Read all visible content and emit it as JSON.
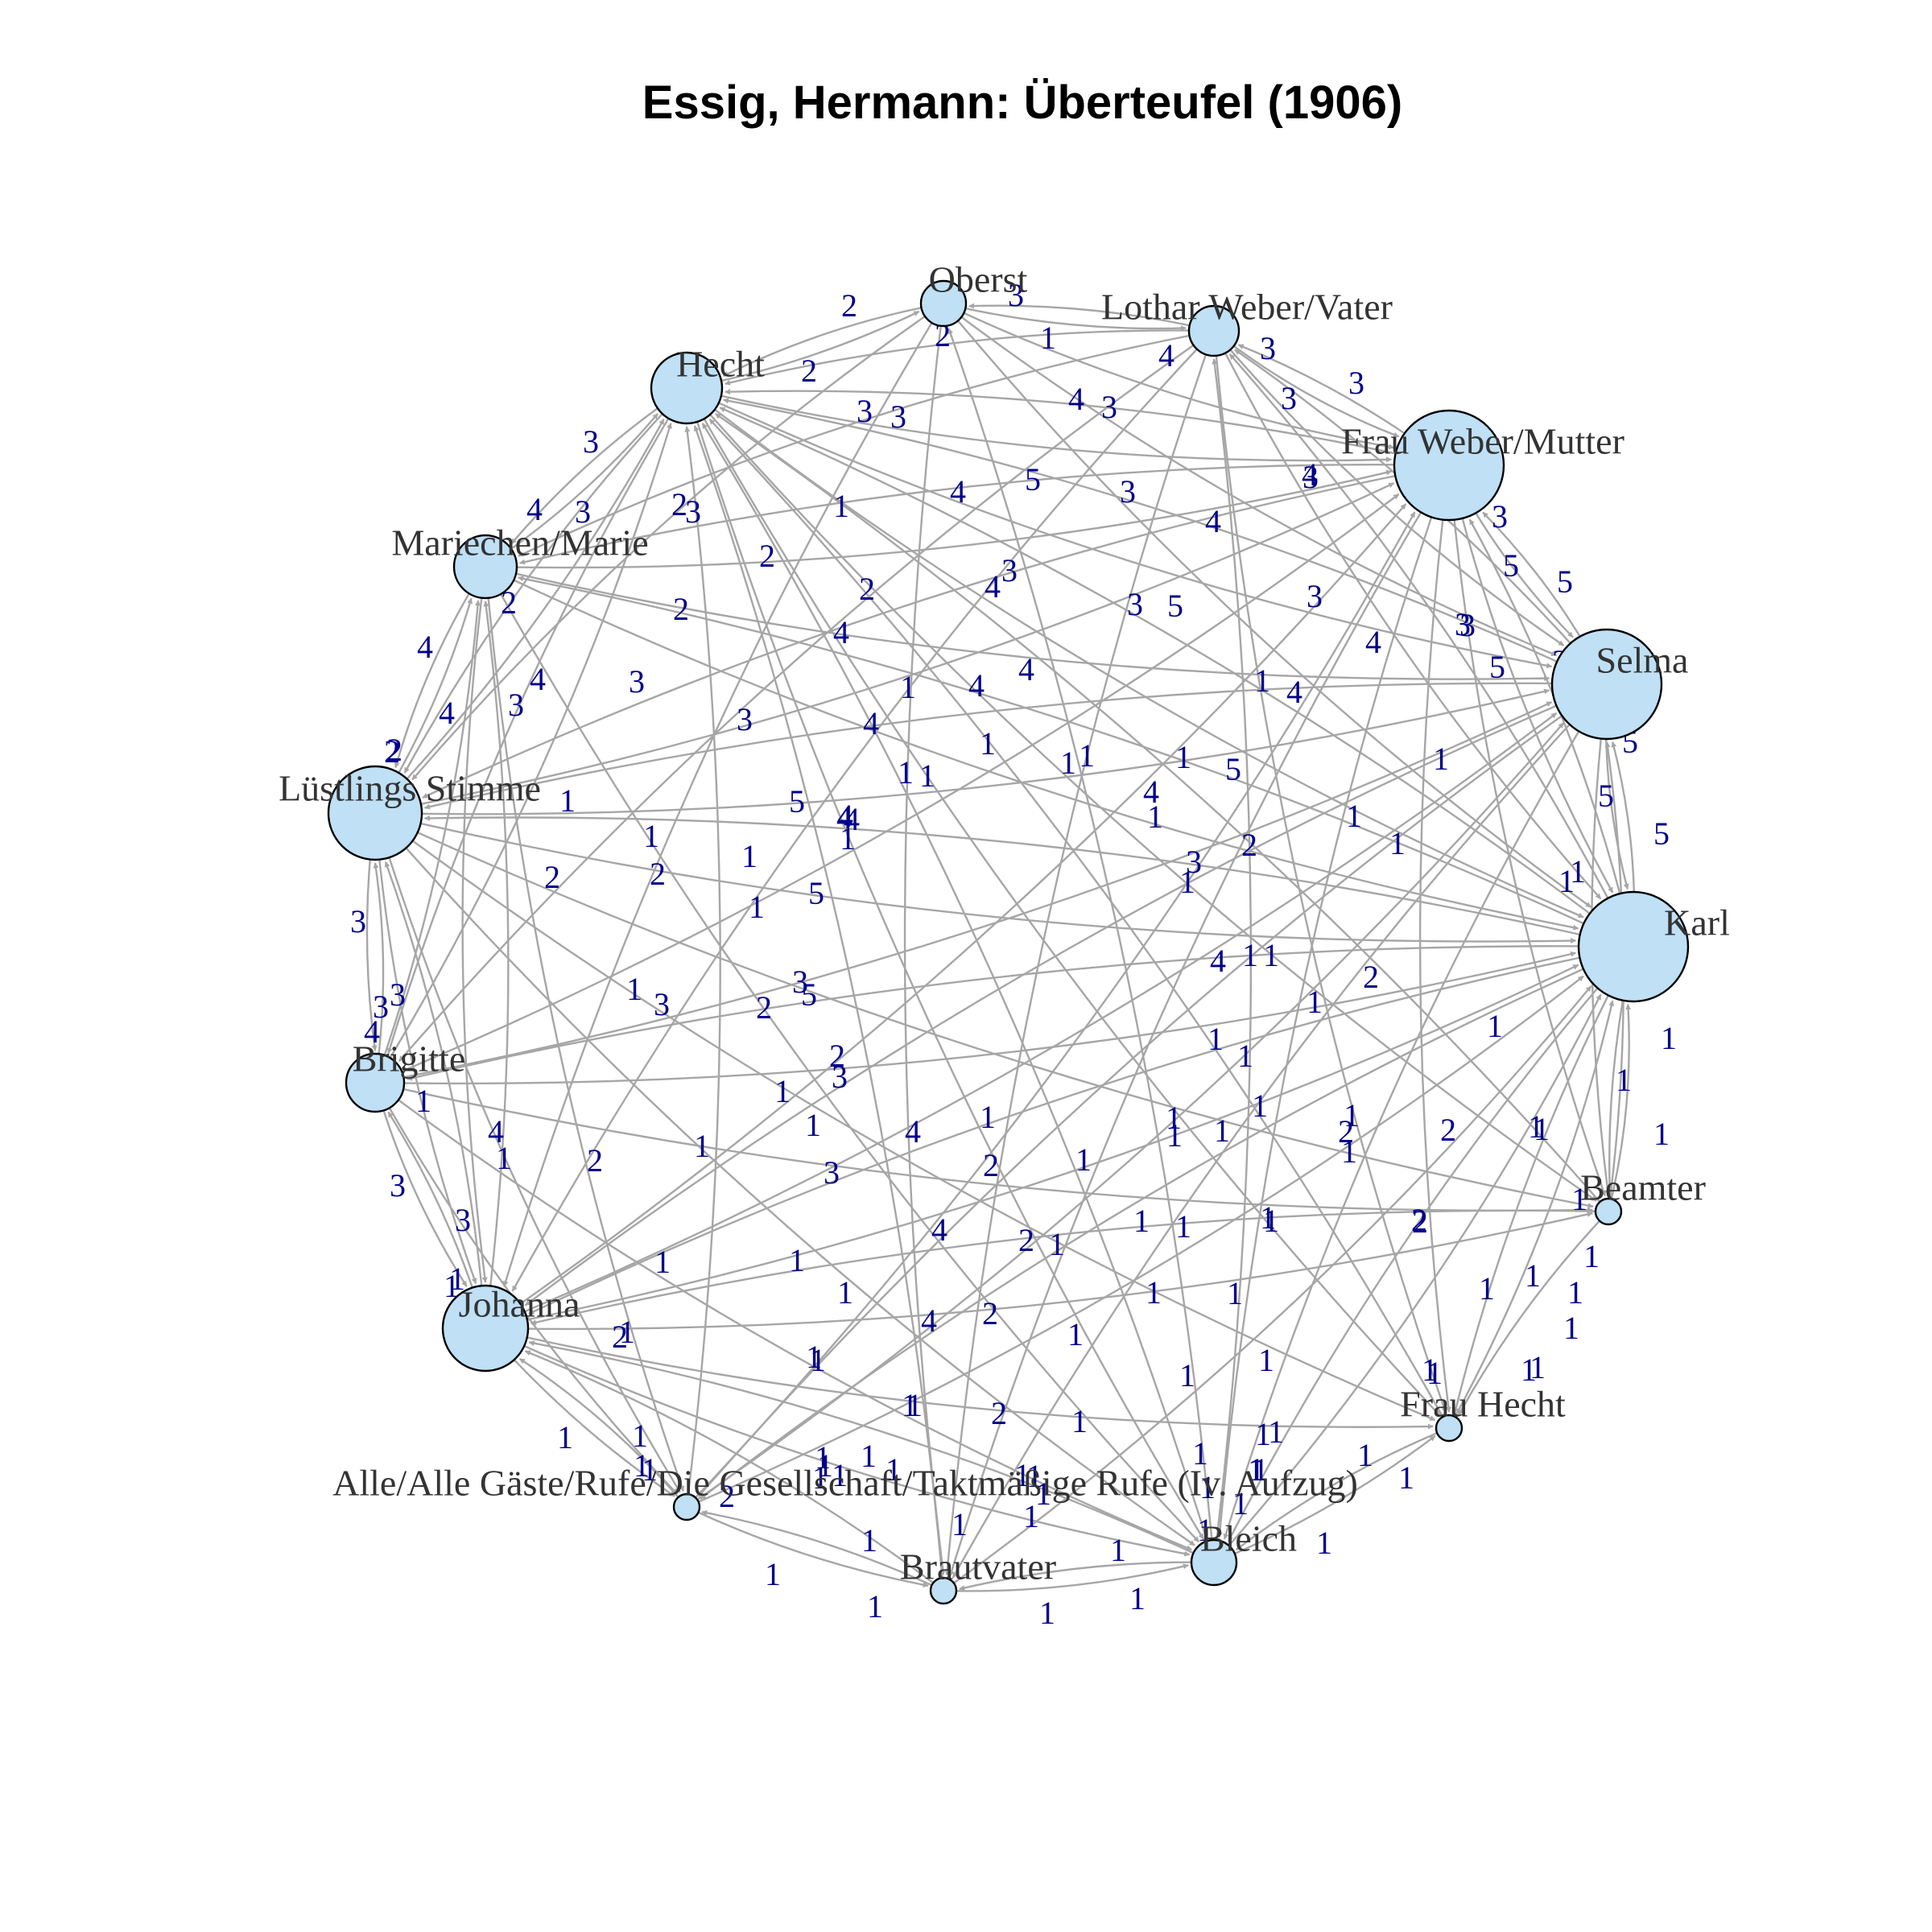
{
  "title": "Essig, Hermann: Überteufel (1906)",
  "colors": {
    "node_fill": "#bfe0f5",
    "edge": "#a6a6a6",
    "edge_label": "#00008b",
    "node_border": "#000000"
  },
  "nodes": [
    {
      "id": "oberst",
      "label": "Oberst",
      "size": 2
    },
    {
      "id": "lothar",
      "label": "Lothar Weber/Vater",
      "size": 2.3
    },
    {
      "id": "frauweber",
      "label": "Frau Weber/Mutter",
      "size": 6
    },
    {
      "id": "selma",
      "label": "Selma",
      "size": 6
    },
    {
      "id": "karl",
      "label": "Karl",
      "size": 6
    },
    {
      "id": "beamter",
      "label": "Beamter",
      "size": 0.8
    },
    {
      "id": "frauhecht",
      "label": "Frau Hecht",
      "size": 0.8
    },
    {
      "id": "bleich",
      "label": "Bleich",
      "size": 2
    },
    {
      "id": "brautvater",
      "label": "Brautvater",
      "size": 0.8
    },
    {
      "id": "alle",
      "label": "Alle/Alle Gäste/Rufe/Die Gesellschaft/Taktmäßige Rufe (Iv. Aufzug)",
      "size": 0.8
    },
    {
      "id": "johanna",
      "label": "Johanna",
      "size": 4.5
    },
    {
      "id": "brigitte",
      "label": "Brigitte",
      "size": 2.8
    },
    {
      "id": "luestling",
      "label": "Lüstlings Stimme",
      "size": 5
    },
    {
      "id": "mariechen",
      "label": "Mariechen/Marie",
      "size": 3.1
    },
    {
      "id": "hecht",
      "label": "Hecht",
      "size": 3.6
    }
  ],
  "edges": [
    [
      "oberst",
      "lothar",
      3
    ],
    [
      "oberst",
      "hecht",
      2
    ],
    [
      "hecht",
      "oberst",
      2
    ],
    [
      "lothar",
      "hecht",
      3
    ],
    [
      "lothar",
      "oberst",
      1
    ],
    [
      "lothar",
      "frauweber",
      3
    ],
    [
      "frauweber",
      "lothar",
      3
    ],
    [
      "frauweber",
      "selma",
      5
    ],
    [
      "selma",
      "frauweber",
      3
    ],
    [
      "selma",
      "karl",
      5
    ],
    [
      "karl",
      "selma",
      5
    ],
    [
      "karl",
      "beamter",
      1
    ],
    [
      "beamter",
      "karl",
      1
    ],
    [
      "beamter",
      "frauhecht",
      1
    ],
    [
      "frauhecht",
      "bleich",
      1
    ],
    [
      "bleich",
      "frauhecht",
      1
    ],
    [
      "bleich",
      "brautvater",
      1
    ],
    [
      "brautvater",
      "bleich",
      1
    ],
    [
      "brautvater",
      "alle",
      1
    ],
    [
      "alle",
      "brautvater",
      1
    ],
    [
      "alle",
      "johanna",
      1
    ],
    [
      "johanna",
      "alle",
      1
    ],
    [
      "johanna",
      "brigitte",
      3
    ],
    [
      "brigitte",
      "johanna",
      3
    ],
    [
      "brigitte",
      "luestling",
      3
    ],
    [
      "luestling",
      "brigitte",
      3
    ],
    [
      "luestling",
      "mariechen",
      4
    ],
    [
      "mariechen",
      "luestling",
      4
    ],
    [
      "mariechen",
      "hecht",
      3
    ],
    [
      "hecht",
      "mariechen",
      4
    ],
    [
      "hecht",
      "frauweber",
      3
    ],
    [
      "frauweber",
      "hecht",
      3
    ],
    [
      "hecht",
      "selma",
      4
    ],
    [
      "selma",
      "hecht",
      4
    ],
    [
      "hecht",
      "karl",
      3
    ],
    [
      "karl",
      "hecht",
      3
    ],
    [
      "lothar",
      "selma",
      3
    ],
    [
      "selma",
      "lothar",
      4
    ],
    [
      "lothar",
      "karl",
      4
    ],
    [
      "karl",
      "lothar",
      3
    ],
    [
      "frauweber",
      "karl",
      5
    ],
    [
      "karl",
      "frauweber",
      5
    ],
    [
      "mariechen",
      "frauweber",
      5
    ],
    [
      "frauweber",
      "mariechen",
      4
    ],
    [
      "mariechen",
      "karl",
      4
    ],
    [
      "karl",
      "mariechen",
      4
    ],
    [
      "luestling",
      "frauweber",
      3
    ],
    [
      "frauweber",
      "luestling",
      2
    ],
    [
      "luestling",
      "karl",
      5
    ],
    [
      "karl",
      "luestling",
      5
    ],
    [
      "luestling",
      "selma",
      4
    ],
    [
      "selma",
      "luestling",
      3
    ],
    [
      "brigitte",
      "karl",
      1
    ],
    [
      "karl",
      "brigitte",
      2
    ],
    [
      "brigitte",
      "selma",
      2
    ],
    [
      "johanna",
      "karl",
      1
    ],
    [
      "karl",
      "johanna",
      1
    ],
    [
      "johanna",
      "selma",
      2
    ],
    [
      "selma",
      "johanna",
      3
    ],
    [
      "johanna",
      "frauweber",
      2
    ],
    [
      "bleich",
      "hecht",
      1
    ],
    [
      "hecht",
      "bleich",
      1
    ],
    [
      "bleich",
      "karl",
      1
    ],
    [
      "karl",
      "bleich",
      1
    ],
    [
      "bleich",
      "johanna",
      1
    ],
    [
      "johanna",
      "bleich",
      1
    ],
    [
      "bleich",
      "oberst",
      1
    ],
    [
      "bleich",
      "lothar",
      1
    ],
    [
      "frauhecht",
      "hecht",
      1
    ],
    [
      "hecht",
      "frauhecht",
      1
    ],
    [
      "frauhecht",
      "karl",
      2
    ],
    [
      "karl",
      "frauhecht",
      1
    ],
    [
      "beamter",
      "hecht",
      1
    ],
    [
      "beamter",
      "johanna",
      1
    ],
    [
      "beamter",
      "selma",
      1
    ],
    [
      "brautvater",
      "hecht",
      1
    ],
    [
      "brautvater",
      "johanna",
      1
    ],
    [
      "brautvater",
      "karl",
      1
    ],
    [
      "alle",
      "hecht",
      2
    ],
    [
      "alle",
      "karl",
      1
    ],
    [
      "alle",
      "frauweber",
      1
    ],
    [
      "alle",
      "selma",
      1
    ],
    [
      "oberst",
      "johanna",
      1
    ],
    [
      "oberst",
      "karl",
      1
    ],
    [
      "oberst",
      "frauweber",
      4
    ],
    [
      "lothar",
      "johanna",
      2
    ],
    [
      "lothar",
      "mariechen",
      2
    ],
    [
      "mariechen",
      "johanna",
      3
    ],
    [
      "johanna",
      "mariechen",
      2
    ],
    [
      "brigitte",
      "hecht",
      2
    ],
    [
      "hecht",
      "brigitte",
      3
    ],
    [
      "brigitte",
      "mariechen",
      4
    ],
    [
      "luestling",
      "hecht",
      3
    ],
    [
      "hecht",
      "luestling",
      2
    ],
    [
      "luestling",
      "johanna",
      4
    ],
    [
      "johanna",
      "luestling",
      3
    ],
    [
      "selma",
      "beamter",
      2
    ],
    [
      "frauweber",
      "beamter",
      1
    ],
    [
      "frauweber",
      "bleich",
      1
    ],
    [
      "selma",
      "bleich",
      1
    ],
    [
      "brigitte",
      "bleich",
      1
    ],
    [
      "mariechen",
      "bleich",
      1
    ],
    [
      "luestling",
      "bleich",
      1
    ],
    [
      "luestling",
      "alle",
      1
    ],
    [
      "mariechen",
      "alle",
      1
    ],
    [
      "brigitte",
      "alle",
      1
    ],
    [
      "selma",
      "alle",
      1
    ],
    [
      "frauweber",
      "frauhecht",
      2
    ],
    [
      "lothar",
      "frauhecht",
      1
    ],
    [
      "oberst",
      "brautvater",
      1
    ],
    [
      "lothar",
      "brautvater",
      1
    ],
    [
      "selma",
      "brautvater",
      1
    ],
    [
      "frauweber",
      "brautvater",
      1
    ],
    [
      "karl",
      "alle",
      2
    ],
    [
      "brigitte",
      "frauweber",
      4
    ],
    [
      "lothar",
      "brigitte",
      1
    ],
    [
      "oberst",
      "selma",
      3
    ],
    [
      "oberst",
      "luestling",
      2
    ],
    [
      "mariechen",
      "selma",
      3
    ],
    [
      "luestling",
      "frauhecht",
      1
    ],
    [
      "johanna",
      "frauhecht",
      2
    ],
    [
      "hecht",
      "beamter",
      1
    ],
    [
      "luestling",
      "beamter",
      1
    ],
    [
      "johanna",
      "beamter",
      1
    ],
    [
      "brigitte",
      "beamter",
      4
    ]
  ],
  "edge_labels": [
    [
      "2",
      1055,
      384
    ],
    [
      "3",
      1262,
      371
    ],
    [
      "2",
      1171,
      421
    ],
    [
      "1",
      1302,
      424
    ],
    [
      "4",
      1449,
      446
    ],
    [
      "3",
      1575,
      437
    ],
    [
      "3",
      1685,
      480
    ],
    [
      "3",
      1601,
      499
    ],
    [
      "2",
      1005,
      465
    ],
    [
      "3",
      1074,
      515
    ],
    [
      "3",
      1116,
      522
    ],
    [
      "4",
      1337,
      500
    ],
    [
      "3",
      1378,
      510
    ],
    [
      "4",
      1627,
      594
    ],
    [
      "3",
      1628,
      597
    ],
    [
      "3",
      1863,
      646
    ],
    [
      "5",
      1877,
      707
    ],
    [
      "5",
      1944,
      727
    ],
    [
      "3",
      1823,
      781
    ],
    [
      "5",
      1860,
      833
    ],
    [
      "3",
      1938,
      826
    ],
    [
      "5",
      2025,
      926
    ],
    [
      "5",
      1995,
      993
    ],
    [
      "5",
      2064,
      1040
    ],
    [
      "3",
      734,
      553
    ],
    [
      "4",
      664,
      637
    ],
    [
      "3",
      724,
      640
    ],
    [
      "2",
      844,
      631
    ],
    [
      "3",
      861,
      640
    ],
    [
      "2",
      632,
      753
    ],
    [
      "4",
      528,
      808
    ],
    [
      "4",
      555,
      890
    ],
    [
      "2",
      490,
      936
    ],
    [
      "2",
      953,
      695
    ],
    [
      "1",
      1045,
      633
    ],
    [
      "4",
      1190,
      615
    ],
    [
      "5",
      1283,
      600
    ],
    [
      "3",
      1401,
      615
    ],
    [
      "4",
      1507,
      652
    ],
    [
      "3",
      1254,
      713
    ],
    [
      "4",
      1233,
      733
    ],
    [
      "2",
      1077,
      736
    ],
    [
      "3",
      1410,
      755
    ],
    [
      "5",
      1460,
      757
    ],
    [
      "3",
      1633,
      745
    ],
    [
      "4",
      1706,
      802
    ],
    [
      "3",
      1817,
      780
    ],
    [
      "4",
      1045,
      790
    ],
    [
      "2",
      846,
      761
    ],
    [
      "4",
      668,
      848
    ],
    [
      "3",
      641,
      880
    ],
    [
      "3",
      791,
      851
    ],
    [
      "3",
      925,
      898
    ],
    [
      "1",
      1128,
      858
    ],
    [
      "4",
      1213,
      856
    ],
    [
      "4",
      1275,
      836
    ],
    [
      "4",
      1082,
      903
    ],
    [
      "1",
      1227,
      928
    ],
    [
      "1",
      1568,
      850
    ],
    [
      "4",
      1608,
      864
    ],
    [
      "2",
      487,
      938
    ],
    [
      "1",
      705,
      999
    ],
    [
      "5",
      990,
      1000
    ],
    [
      "4",
      1050,
      1018
    ],
    [
      "4",
      1049,
      1020
    ],
    [
      "1",
      1125,
      964
    ],
    [
      "1",
      1152,
      968
    ],
    [
      "1",
      1327,
      952
    ],
    [
      "1",
      1350,
      943
    ],
    [
      "1",
      1470,
      945
    ],
    [
      "4",
      1430,
      988
    ],
    [
      "5",
      1532,
      960
    ],
    [
      "1",
      1790,
      947
    ],
    [
      "3",
      510,
      1025
    ],
    [
      "2",
      686,
      1094
    ],
    [
      "1",
      809,
      1043
    ],
    [
      "2",
      817,
      1090
    ],
    [
      "1",
      931,
      1068
    ],
    [
      "1",
      940,
      1131
    ],
    [
      "5",
      1014,
      1114
    ],
    [
      "4",
      1058,
      1022
    ],
    [
      "1",
      1053,
      1046
    ],
    [
      "1",
      1435,
      1019
    ],
    [
      "2",
      1552,
      1054
    ],
    [
      "3",
      1483,
      1075
    ],
    [
      "1",
      1475,
      1100
    ],
    [
      "1",
      1682,
      1018
    ],
    [
      "1",
      1736,
      1052
    ],
    [
      "1",
      1946,
      1099
    ],
    [
      "1",
      1960,
      1087
    ],
    [
      "1",
      2028,
      1195
    ],
    [
      "3",
      445,
      1149
    ],
    [
      "3",
      494,
      1240
    ],
    [
      "1",
      788,
      1233
    ],
    [
      "3",
      822,
      1252
    ],
    [
      "3",
      994,
      1224
    ],
    [
      "5",
      1005,
      1240
    ],
    [
      "2",
      949,
      1256
    ],
    [
      "2",
      1040,
      1316
    ],
    [
      "3",
      1043,
      1342
    ],
    [
      "1",
      972,
      1360
    ],
    [
      "4",
      1513,
      1198
    ],
    [
      "1",
      1553,
      1191
    ],
    [
      "1",
      1579,
      1191
    ],
    [
      "1",
      1633,
      1249
    ],
    [
      "2",
      1703,
      1218
    ],
    [
      "1",
      1857,
      1279
    ],
    [
      "1",
      2073,
      1294
    ],
    [
      "1",
      1510,
      1295
    ],
    [
      "1",
      1547,
      1316
    ],
    [
      "3",
      473,
      1255
    ],
    [
      "4",
      462,
      1286
    ],
    [
      "1",
      526,
      1372
    ],
    [
      "4",
      616,
      1410
    ],
    [
      "1",
      626,
      1443
    ],
    [
      "2",
      739,
      1446
    ],
    [
      "1",
      872,
      1428
    ],
    [
      "1",
      1010,
      1402
    ],
    [
      "4",
      1134,
      1410
    ],
    [
      "3",
      1033,
      1461
    ],
    [
      "1",
      1227,
      1392
    ],
    [
      "2",
      1231,
      1452
    ],
    [
      "1",
      1346,
      1445
    ],
    [
      "1",
      1458,
      1393
    ],
    [
      "1",
      1565,
      1378
    ],
    [
      "1",
      1459,
      1415
    ],
    [
      "1",
      1518,
      1409
    ],
    [
      "1",
      1679,
      1390
    ],
    [
      "2",
      1672,
      1410
    ],
    [
      "1",
      1676,
      1435
    ],
    [
      "1",
      1915,
      1407
    ],
    [
      "1",
      1908,
      1404
    ],
    [
      "1",
      2017,
      1346
    ],
    [
      "2",
      1799,
      1408
    ],
    [
      "2",
      1763,
      1520
    ],
    [
      "1",
      2064,
      1413
    ],
    [
      "1",
      1962,
      1494
    ],
    [
      "1",
      1977,
      1565
    ],
    [
      "3",
      494,
      1477
    ],
    [
      "3",
      575,
      1520
    ],
    [
      "1",
      561,
      1602
    ],
    [
      "1",
      823,
      1572
    ],
    [
      "1",
      990,
      1570
    ],
    [
      "1",
      1050,
      1610
    ],
    [
      "4",
      1167,
      1532
    ],
    [
      "2",
      1275,
      1545
    ],
    [
      "1",
      1313,
      1550
    ],
    [
      "1",
      1418,
      1521
    ],
    [
      "1",
      1470,
      1528
    ],
    [
      "1",
      1579,
      1521
    ],
    [
      "1",
      1575,
      1517
    ],
    [
      "2",
      1764,
      1522
    ],
    [
      "1",
      1904,
      1589
    ],
    [
      "1",
      1957,
      1610
    ],
    [
      "4",
      1154,
      1645
    ],
    [
      "2",
      1230,
      1636
    ],
    [
      "1",
      1336,
      1662
    ],
    [
      "1",
      1433,
      1610
    ],
    [
      "1",
      1534,
      1611
    ],
    [
      "1",
      1847,
      1605
    ],
    [
      "1",
      1952,
      1654
    ],
    [
      "1",
      1016,
      1694
    ],
    [
      "1",
      1136,
      1750
    ],
    [
      "2",
      1241,
      1760
    ],
    [
      "1",
      1341,
      1770
    ],
    [
      "1",
      1475,
      1713
    ],
    [
      "1",
      1573,
      1694
    ],
    [
      "1",
      1910,
      1703
    ],
    [
      "1",
      1011,
      1690
    ],
    [
      "1",
      1130,
      1750
    ],
    [
      "2",
      770,
      1665
    ],
    [
      "1",
      779,
      1659
    ],
    [
      "1",
      1899,
      1706
    ],
    [
      "1",
      1776,
      1706
    ],
    [
      "1",
      1585,
      1783
    ],
    [
      "1",
      1696,
      1812
    ],
    [
      "1",
      1747,
      1840
    ],
    [
      "1",
      1645,
      1921
    ],
    [
      "1",
      1389,
      1930
    ],
    [
      "1",
      1413,
      1990
    ],
    [
      "1",
      1301,
      2008
    ],
    [
      "1",
      1087,
      2000
    ],
    [
      "1",
      1080,
      1918
    ],
    [
      "1",
      960,
      1960
    ],
    [
      "1",
      702,
      1790
    ],
    [
      "1",
      795,
      1788
    ],
    [
      "1",
      797,
      1825
    ],
    [
      "1",
      807,
      1830
    ],
    [
      "1",
      1022,
      1815
    ],
    [
      "1",
      1285,
      1838
    ],
    [
      "1",
      1281,
      1888
    ],
    [
      "2",
      903,
      1863
    ],
    [
      "1",
      1019,
      1840
    ],
    [
      "1",
      1500,
      1852
    ],
    [
      "1",
      1569,
      1786
    ],
    [
      "1",
      1561,
      1830
    ],
    [
      "1",
      568,
      1593
    ],
    [
      "1",
      1782,
      1710
    ],
    [
      "1",
      1270,
      1837
    ],
    [
      "1",
      1296,
      1860
    ],
    [
      "1",
      1560,
      1830
    ],
    [
      "1",
      1566,
      1830
    ],
    [
      "1",
      1192,
      1898
    ],
    [
      "1",
      1541,
      1872
    ],
    [
      "1",
      1497,
      1905
    ],
    [
      "1",
      1491,
      1810
    ],
    [
      "1",
      1079,
      1813
    ],
    [
      "1",
      1025,
      1825
    ],
    [
      "1",
      1043,
      1837
    ],
    [
      "1",
      1110,
      1830
    ]
  ]
}
